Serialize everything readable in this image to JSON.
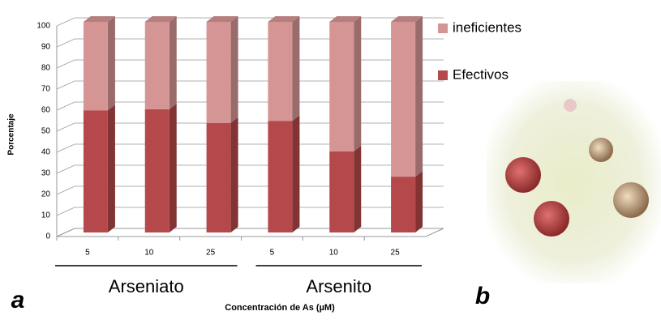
{
  "chart_data": {
    "type": "bar",
    "stacked": true,
    "x_axis_title": "Concentración de As (µM)",
    "y_axis_title": "Porcentaje",
    "categories": [
      "5",
      "10",
      "25",
      "5",
      "10",
      "25"
    ],
    "group_labels": [
      "Arseniato",
      "Arsenito"
    ],
    "panel_labels": [
      "a",
      "b"
    ],
    "series": [
      {
        "name": "Efectivos",
        "color": "#b5484a",
        "values": [
          58,
          58.5,
          52,
          53,
          38.5,
          26.5
        ]
      },
      {
        "name": "ineficientes",
        "color": "#d69595",
        "values": [
          42,
          41.5,
          48,
          47,
          61.5,
          73.5
        ]
      }
    ],
    "ylim": [
      0,
      100
    ],
    "yticks": [
      0,
      10,
      20,
      30,
      40,
      50,
      60,
      70,
      80,
      90,
      100
    ],
    "grid": true
  }
}
